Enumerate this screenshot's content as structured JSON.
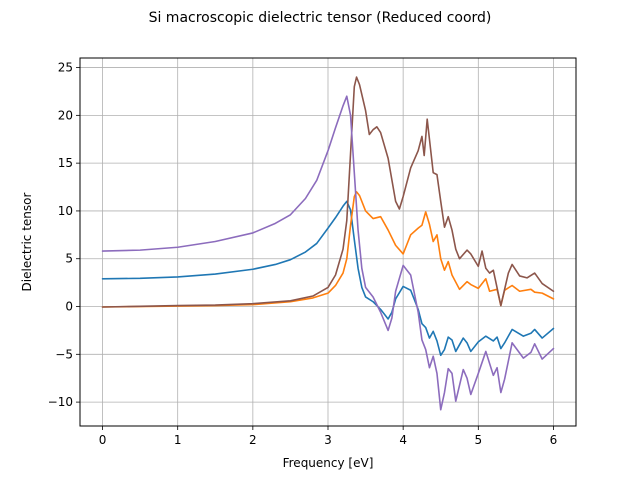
{
  "chart_data": {
    "type": "line",
    "title": "Si macroscopic dielectric tensor (Reduced coord)",
    "xlabel": "Frequency [eV]",
    "ylabel": "Dielectric tensor",
    "xlim": [
      -0.3,
      6.3
    ],
    "ylim": [
      -12.5,
      26.0
    ],
    "xticks": [
      0,
      1,
      2,
      3,
      4,
      5,
      6
    ],
    "yticks": [
      -10,
      -5,
      0,
      5,
      10,
      15,
      20,
      25
    ],
    "grid": true,
    "series": [
      {
        "color": "#1f77b4",
        "points": [
          [
            0,
            2.9
          ],
          [
            0.5,
            2.95
          ],
          [
            1.0,
            3.1
          ],
          [
            1.5,
            3.4
          ],
          [
            2.0,
            3.9
          ],
          [
            2.3,
            4.4
          ],
          [
            2.5,
            4.9
          ],
          [
            2.7,
            5.7
          ],
          [
            2.85,
            6.6
          ],
          [
            3.0,
            8.2
          ],
          [
            3.1,
            9.3
          ],
          [
            3.2,
            10.5
          ],
          [
            3.25,
            11.0
          ],
          [
            3.3,
            10.1
          ],
          [
            3.35,
            7.0
          ],
          [
            3.4,
            4.0
          ],
          [
            3.45,
            2.0
          ],
          [
            3.5,
            1.0
          ],
          [
            3.6,
            0.5
          ],
          [
            3.7,
            -0.3
          ],
          [
            3.8,
            -1.3
          ],
          [
            3.85,
            -0.6
          ],
          [
            3.9,
            0.8
          ],
          [
            4.0,
            2.1
          ],
          [
            4.1,
            1.7
          ],
          [
            4.2,
            -0.3
          ],
          [
            4.25,
            -1.8
          ],
          [
            4.3,
            -2.2
          ],
          [
            4.35,
            -3.3
          ],
          [
            4.4,
            -2.6
          ],
          [
            4.45,
            -3.6
          ],
          [
            4.5,
            -5.1
          ],
          [
            4.55,
            -4.5
          ],
          [
            4.6,
            -3.2
          ],
          [
            4.65,
            -3.5
          ],
          [
            4.7,
            -4.7
          ],
          [
            4.8,
            -3.3
          ],
          [
            4.85,
            -3.8
          ],
          [
            4.9,
            -4.7
          ],
          [
            5.0,
            -3.7
          ],
          [
            5.1,
            -3.1
          ],
          [
            5.2,
            -3.6
          ],
          [
            5.25,
            -3.2
          ],
          [
            5.3,
            -4.4
          ],
          [
            5.35,
            -3.8
          ],
          [
            5.45,
            -2.4
          ],
          [
            5.6,
            -3.1
          ],
          [
            5.7,
            -2.8
          ],
          [
            5.75,
            -2.4
          ],
          [
            5.85,
            -3.3
          ],
          [
            6.0,
            -2.3
          ]
        ]
      },
      {
        "color": "#ff7f0e",
        "points": [
          [
            0,
            -0.05
          ],
          [
            1.0,
            0.05
          ],
          [
            1.5,
            0.1
          ],
          [
            2.0,
            0.2
          ],
          [
            2.5,
            0.5
          ],
          [
            2.8,
            0.9
          ],
          [
            3.0,
            1.4
          ],
          [
            3.1,
            2.2
          ],
          [
            3.2,
            3.5
          ],
          [
            3.25,
            5.0
          ],
          [
            3.3,
            8.5
          ],
          [
            3.35,
            11.5
          ],
          [
            3.38,
            12.0
          ],
          [
            3.42,
            11.6
          ],
          [
            3.5,
            10.0
          ],
          [
            3.6,
            9.2
          ],
          [
            3.7,
            9.4
          ],
          [
            3.8,
            8.0
          ],
          [
            3.9,
            6.4
          ],
          [
            4.0,
            5.5
          ],
          [
            4.05,
            6.5
          ],
          [
            4.1,
            7.5
          ],
          [
            4.2,
            8.2
          ],
          [
            4.25,
            8.5
          ],
          [
            4.3,
            9.9
          ],
          [
            4.35,
            8.6
          ],
          [
            4.4,
            6.8
          ],
          [
            4.45,
            7.5
          ],
          [
            4.5,
            5.0
          ],
          [
            4.55,
            3.8
          ],
          [
            4.6,
            4.7
          ],
          [
            4.65,
            3.3
          ],
          [
            4.75,
            1.8
          ],
          [
            4.85,
            2.6
          ],
          [
            4.9,
            2.3
          ],
          [
            5.0,
            1.9
          ],
          [
            5.1,
            2.9
          ],
          [
            5.15,
            1.6
          ],
          [
            5.25,
            1.8
          ],
          [
            5.3,
            0.1
          ],
          [
            5.35,
            1.7
          ],
          [
            5.45,
            2.2
          ],
          [
            5.55,
            1.6
          ],
          [
            5.7,
            1.8
          ],
          [
            5.75,
            1.5
          ],
          [
            5.85,
            1.4
          ],
          [
            6.0,
            0.8
          ]
        ]
      },
      {
        "color": "#8c564b",
        "points": [
          [
            0,
            -0.05
          ],
          [
            1.0,
            0.1
          ],
          [
            1.5,
            0.15
          ],
          [
            2.0,
            0.3
          ],
          [
            2.5,
            0.6
          ],
          [
            2.8,
            1.1
          ],
          [
            3.0,
            2.0
          ],
          [
            3.1,
            3.3
          ],
          [
            3.2,
            6.0
          ],
          [
            3.25,
            9.0
          ],
          [
            3.3,
            16.0
          ],
          [
            3.35,
            23.0
          ],
          [
            3.38,
            24.0
          ],
          [
            3.42,
            23.2
          ],
          [
            3.5,
            20.5
          ],
          [
            3.55,
            18.0
          ],
          [
            3.6,
            18.5
          ],
          [
            3.65,
            18.8
          ],
          [
            3.7,
            18.2
          ],
          [
            3.8,
            15.5
          ],
          [
            3.9,
            11.0
          ],
          [
            3.95,
            10.2
          ],
          [
            4.0,
            11.5
          ],
          [
            4.1,
            14.5
          ],
          [
            4.2,
            16.3
          ],
          [
            4.25,
            17.8
          ],
          [
            4.28,
            15.8
          ],
          [
            4.32,
            19.6
          ],
          [
            4.36,
            16.8
          ],
          [
            4.4,
            14.0
          ],
          [
            4.45,
            13.8
          ],
          [
            4.5,
            11.0
          ],
          [
            4.55,
            8.3
          ],
          [
            4.6,
            9.4
          ],
          [
            4.65,
            8.0
          ],
          [
            4.7,
            6.0
          ],
          [
            4.75,
            5.0
          ],
          [
            4.85,
            5.9
          ],
          [
            4.9,
            5.5
          ],
          [
            5.0,
            4.2
          ],
          [
            5.05,
            5.8
          ],
          [
            5.1,
            4.0
          ],
          [
            5.15,
            3.5
          ],
          [
            5.2,
            3.8
          ],
          [
            5.3,
            0.1
          ],
          [
            5.4,
            3.5
          ],
          [
            5.45,
            4.4
          ],
          [
            5.55,
            3.2
          ],
          [
            5.65,
            3.0
          ],
          [
            5.75,
            3.5
          ],
          [
            5.85,
            2.4
          ],
          [
            6.0,
            1.6
          ]
        ]
      },
      {
        "color": "#8c6cbd",
        "points": [
          [
            0,
            5.8
          ],
          [
            0.5,
            5.9
          ],
          [
            1.0,
            6.2
          ],
          [
            1.5,
            6.8
          ],
          [
            2.0,
            7.7
          ],
          [
            2.3,
            8.7
          ],
          [
            2.5,
            9.6
          ],
          [
            2.7,
            11.3
          ],
          [
            2.85,
            13.2
          ],
          [
            3.0,
            16.3
          ],
          [
            3.1,
            18.7
          ],
          [
            3.2,
            21.0
          ],
          [
            3.25,
            22.0
          ],
          [
            3.3,
            20.0
          ],
          [
            3.35,
            14.0
          ],
          [
            3.4,
            8.0
          ],
          [
            3.45,
            4.0
          ],
          [
            3.5,
            2.0
          ],
          [
            3.6,
            1.0
          ],
          [
            3.7,
            -0.6
          ],
          [
            3.8,
            -2.5
          ],
          [
            3.85,
            -1.2
          ],
          [
            3.9,
            1.6
          ],
          [
            4.0,
            4.3
          ],
          [
            4.1,
            3.3
          ],
          [
            4.2,
            -0.6
          ],
          [
            4.25,
            -3.5
          ],
          [
            4.3,
            -4.5
          ],
          [
            4.35,
            -6.4
          ],
          [
            4.4,
            -5.2
          ],
          [
            4.45,
            -7.0
          ],
          [
            4.5,
            -10.8
          ],
          [
            4.55,
            -9.0
          ],
          [
            4.6,
            -6.5
          ],
          [
            4.65,
            -7.0
          ],
          [
            4.7,
            -9.9
          ],
          [
            4.8,
            -6.6
          ],
          [
            4.85,
            -7.5
          ],
          [
            4.9,
            -9.2
          ],
          [
            5.0,
            -7.0
          ],
          [
            5.1,
            -4.7
          ],
          [
            5.2,
            -7.2
          ],
          [
            5.25,
            -6.4
          ],
          [
            5.3,
            -9.0
          ],
          [
            5.35,
            -7.6
          ],
          [
            5.45,
            -3.8
          ],
          [
            5.6,
            -5.4
          ],
          [
            5.7,
            -4.8
          ],
          [
            5.75,
            -3.9
          ],
          [
            5.85,
            -5.5
          ],
          [
            6.0,
            -4.4
          ]
        ]
      }
    ]
  }
}
